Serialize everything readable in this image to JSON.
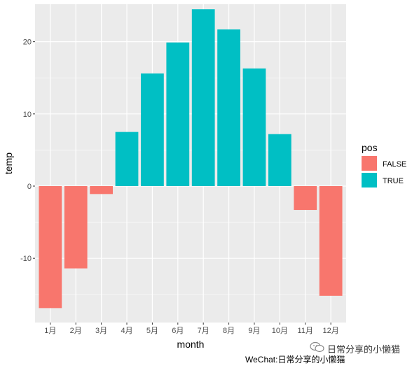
{
  "chart_data": {
    "type": "bar",
    "categories": [
      "1月",
      "2月",
      "3月",
      "4月",
      "5月",
      "6月",
      "7月",
      "8月",
      "9月",
      "10月",
      "11月",
      "12月"
    ],
    "values": [
      -16.9,
      -11.4,
      -1.1,
      7.5,
      15.6,
      19.9,
      24.5,
      21.7,
      16.3,
      7.2,
      -3.3,
      -15.2
    ],
    "pos": [
      false,
      false,
      false,
      true,
      true,
      true,
      true,
      true,
      true,
      true,
      false,
      false
    ],
    "xlabel": "month",
    "ylabel": "temp",
    "ylim": [
      -18.9,
      25.2
    ],
    "yticks": [
      -10,
      0,
      10,
      20
    ],
    "ytick_labels": [
      "-10",
      "0",
      "10",
      "20"
    ],
    "grid": true,
    "legend": {
      "title": "pos",
      "placement": "right",
      "entries": [
        {
          "label": "FALSE",
          "color": "#F8766D"
        },
        {
          "label": "TRUE",
          "color": "#00BFC4"
        }
      ]
    }
  },
  "colors": {
    "panel_bg": "#EBEBEB",
    "grid": "#FFFFFF",
    "false_fill": "#F8766D",
    "true_fill": "#00BFC4"
  },
  "watermark": {
    "logo_text": "日常分享的小懒猫",
    "credit": "WeChat:日常分享的小懒猫"
  }
}
